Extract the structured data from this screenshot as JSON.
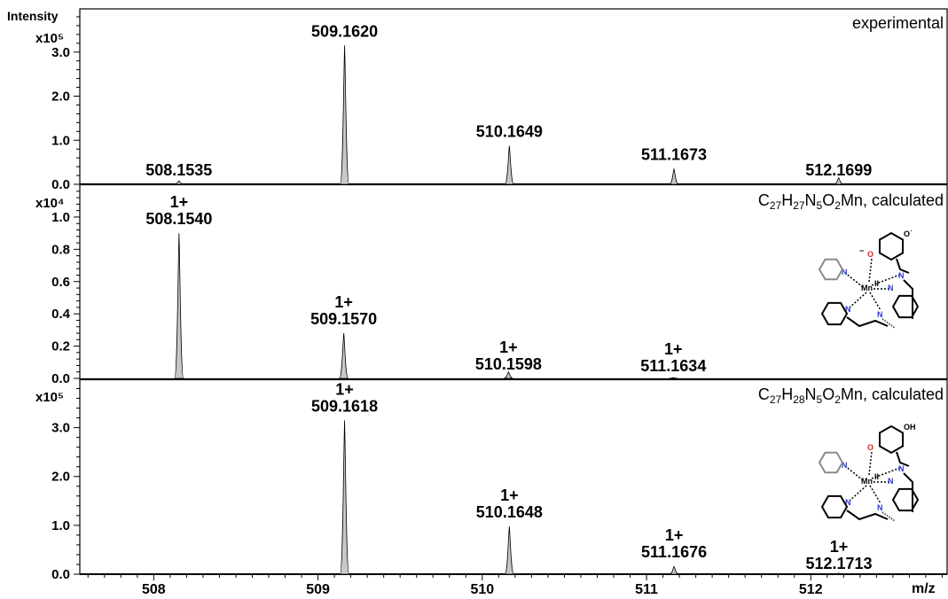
{
  "axes": {
    "y_title": "Intensity",
    "x_title": "m/z",
    "x_ticks": [
      "508",
      "509",
      "510",
      "511",
      "512"
    ]
  },
  "chart_data": [
    {
      "type": "line",
      "style": "filled-peaks",
      "title": "experimental",
      "exponent_label": "x10⁵",
      "xlim": [
        507.55,
        512.83
      ],
      "ylim": [
        0,
        3.9
      ],
      "y_ticks": [
        "0.0",
        "1.0",
        "2.0",
        "3.0"
      ],
      "peaks": [
        {
          "x": 508.1535,
          "y": 0.08,
          "label": "508.1535",
          "charge": ""
        },
        {
          "x": 509.162,
          "y": 3.15,
          "label": "509.1620",
          "charge": ""
        },
        {
          "x": 510.1649,
          "y": 0.87,
          "label": "510.1649",
          "charge": ""
        },
        {
          "x": 511.1673,
          "y": 0.35,
          "label": "511.1673",
          "charge": ""
        },
        {
          "x": 512.1699,
          "y": 0.15,
          "label": "512.1699",
          "charge": ""
        }
      ]
    },
    {
      "type": "line",
      "style": "filled-peaks",
      "title_parts": [
        "C",
        "27",
        "H",
        "27",
        "N",
        "5",
        "O",
        "2",
        "Mn, calculated"
      ],
      "exponent_label": "x10⁴",
      "xlim": [
        507.55,
        512.83
      ],
      "ylim": [
        0,
        1.17
      ],
      "y_ticks": [
        "0.0",
        "0.2",
        "0.4",
        "0.6",
        "0.8",
        "1.0"
      ],
      "peaks": [
        {
          "x": 508.154,
          "y": 0.9,
          "label": "508.1540",
          "charge": "1+"
        },
        {
          "x": 509.157,
          "y": 0.28,
          "label": "509.1570",
          "charge": "1+"
        },
        {
          "x": 510.1598,
          "y": 0.04,
          "label": "510.1598",
          "charge": "1+"
        },
        {
          "x": 511.1634,
          "y": 0.005,
          "label": "511.1634",
          "charge": "1+"
        }
      ]
    },
    {
      "type": "line",
      "style": "filled-peaks",
      "title_parts": [
        "C",
        "27",
        "H",
        "28",
        "N",
        "5",
        "O",
        "2",
        "Mn, calculated"
      ],
      "exponent_label": "x10⁵",
      "xlim": [
        507.55,
        512.83
      ],
      "ylim": [
        0,
        3.9
      ],
      "y_ticks": [
        "0.0",
        "1.0",
        "2.0",
        "3.0"
      ],
      "peaks": [
        {
          "x": 509.1618,
          "y": 3.15,
          "label": "509.1618",
          "charge": "1+"
        },
        {
          "x": 510.1648,
          "y": 0.98,
          "label": "510.1648",
          "charge": "1+"
        },
        {
          "x": 511.1676,
          "y": 0.16,
          "label": "511.1676",
          "charge": "1+"
        },
        {
          "x": 512.1713,
          "y": 0.02,
          "label": "512.1713",
          "charge": "1+"
        }
      ]
    }
  ],
  "structures": [
    {
      "metal_label": "Mn",
      "oxidation": "II",
      "o_label": "O",
      "o_minus": "−",
      "top_sub": "O˙",
      "n_label": "N"
    },
    {
      "metal_label": "Mn",
      "oxidation": "II",
      "o_label": "O",
      "top_sub": "OH",
      "n_label": "N"
    }
  ],
  "colors": {
    "peak_fill": "#c8c8c8",
    "axis": "#000000",
    "nitrogen": "#2b3bd6",
    "oxygen": "#e0201e",
    "faded_ring": "#8a8a8a"
  }
}
